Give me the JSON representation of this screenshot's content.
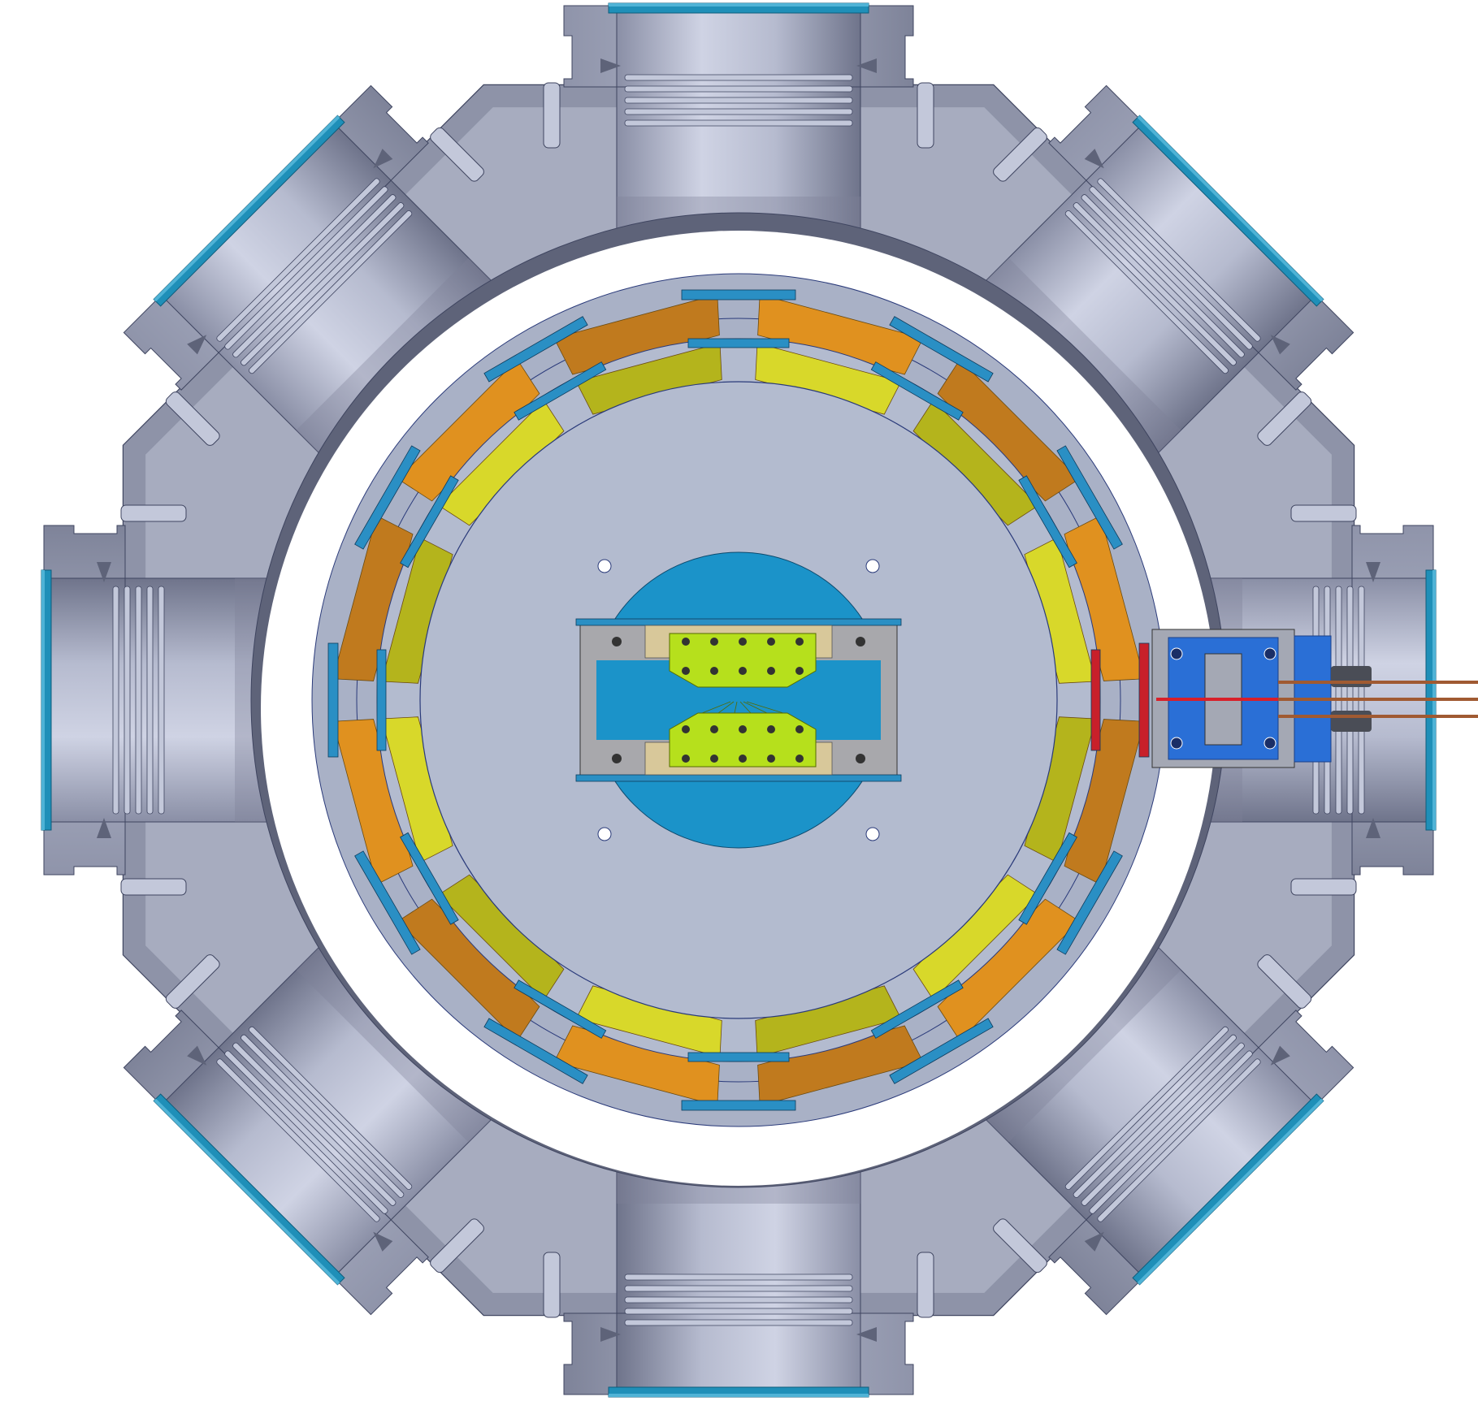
{
  "colors": {
    "background": "#ffffff",
    "chamber_body": "#8e93a8",
    "chamber_face": "#a7acbf",
    "chamber_light": "#c3c8da",
    "chamber_dark": "#5e6379",
    "chamber_edge": "#3f4560",
    "bore_light": "#c9cde0",
    "bore_dark": "#7d8299",
    "window_blue": "#1f8fb8",
    "window_blue_light": "#4fb3d6",
    "inner_plate": "#b3bbcf",
    "plate_ring": "#a9b1c6",
    "outer_ring_copper": "#c07a1e",
    "outer_ring_copper_light": "#e0911f",
    "inner_ring_yellow": "#b4b41c",
    "inner_ring_yellow_light": "#d8d82a",
    "electrode_blue": "#2a8fc4",
    "electrode_red": "#c8202a",
    "trap_center_blue": "#1b93c9",
    "trap_mount_grey": "#a8a8ac",
    "trap_tan": "#d8c89a",
    "trap_electrode_green": "#b6e01c",
    "feedthrough_blue": "#2a6fd6",
    "feedthrough_grey": "#a4a8b4",
    "wire_copper": "#a05a32",
    "wire_red": "#d8202a",
    "dark_part": "#4a4d56"
  },
  "icons": [
    "vacuum-chamber",
    "cf-flange-port",
    "viewport-window",
    "electrode-ring",
    "ion-trap",
    "electrical-feedthrough"
  ]
}
